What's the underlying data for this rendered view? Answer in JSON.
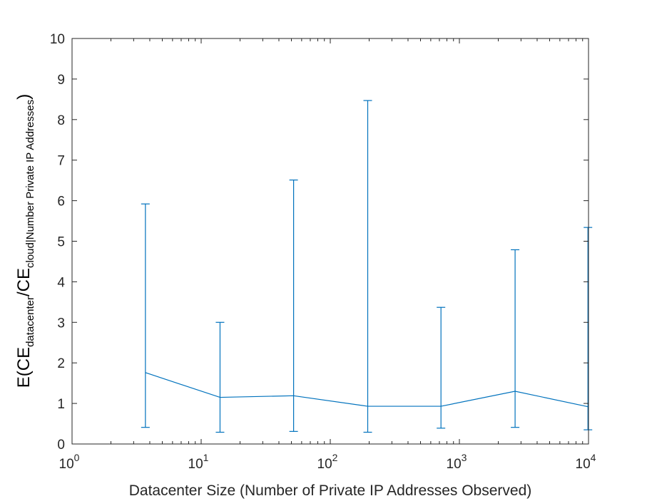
{
  "chart_data": {
    "type": "line",
    "subtype": "errorbar",
    "xscale": "log",
    "xlim": [
      1,
      10000
    ],
    "ylim": [
      0,
      10
    ],
    "xticks": [
      {
        "value": 1,
        "base": "10",
        "exp": "0"
      },
      {
        "value": 10,
        "base": "10",
        "exp": "1"
      },
      {
        "value": 100,
        "base": "10",
        "exp": "2"
      },
      {
        "value": 1000,
        "base": "10",
        "exp": "3"
      },
      {
        "value": 10000,
        "base": "10",
        "exp": "4"
      }
    ],
    "yticks": [
      "0",
      "1",
      "2",
      "3",
      "4",
      "5",
      "6",
      "7",
      "8",
      "9",
      "10"
    ],
    "xlabel": "Datacenter Size (Number of Private IP Addresses Observed)",
    "ylabel": {
      "prefix": "E(CE",
      "sub1": "datacenter",
      "middle": "/CE",
      "sub2": "cloud|Number Private IP Addresses",
      "suffix": ")"
    },
    "grid": false,
    "line_color": "#0072BD",
    "series": [
      {
        "x": [
          3.7,
          14,
          52,
          195,
          720,
          2700,
          9900
        ],
        "y": [
          1.76,
          1.15,
          1.19,
          0.93,
          0.93,
          1.3,
          0.92
        ],
        "lower": [
          0.41,
          0.29,
          0.31,
          0.29,
          0.39,
          0.41,
          0.35
        ],
        "upper": [
          5.92,
          3.0,
          6.51,
          8.47,
          3.37,
          4.79,
          5.34
        ]
      }
    ]
  }
}
